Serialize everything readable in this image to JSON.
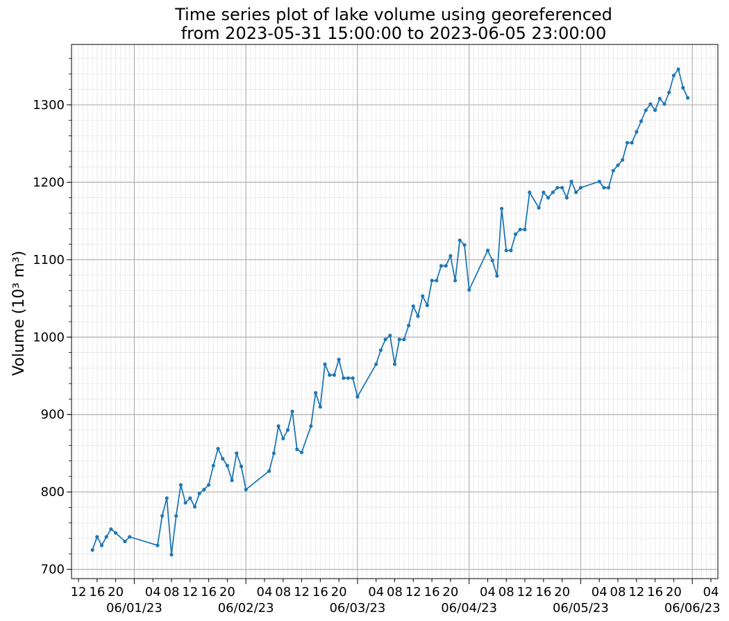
{
  "chart_data": {
    "type": "line",
    "title": [
      "Time series plot of lake volume using georeferenced",
      "from 2023-05-31 15:00:00 to 2023-06-05 23:00:00"
    ],
    "xlabel": "",
    "ylabel": "Volume (10³ m³)",
    "ylim": [
      688,
      1378
    ],
    "xlim": [
      "2023-05-31 10:30",
      "2023-06-06 05:30"
    ],
    "y_ticks": [
      700,
      800,
      900,
      1000,
      1100,
      1200,
      1300
    ],
    "y_tick_labels": [
      "700",
      "800",
      "900",
      "1000",
      "1100",
      "1200",
      "1300"
    ],
    "x_hour_ticks": [
      {
        "t": "2023-05-31 12:00",
        "label": "12"
      },
      {
        "t": "2023-05-31 16:00",
        "label": "16"
      },
      {
        "t": "2023-05-31 20:00",
        "label": "20"
      },
      {
        "t": "2023-06-01 04:00",
        "label": "04"
      },
      {
        "t": "2023-06-01 08:00",
        "label": "08"
      },
      {
        "t": "2023-06-01 12:00",
        "label": "12"
      },
      {
        "t": "2023-06-01 16:00",
        "label": "16"
      },
      {
        "t": "2023-06-01 20:00",
        "label": "20"
      },
      {
        "t": "2023-06-02 04:00",
        "label": "04"
      },
      {
        "t": "2023-06-02 08:00",
        "label": "08"
      },
      {
        "t": "2023-06-02 12:00",
        "label": "12"
      },
      {
        "t": "2023-06-02 16:00",
        "label": "16"
      },
      {
        "t": "2023-06-02 20:00",
        "label": "20"
      },
      {
        "t": "2023-06-03 04:00",
        "label": "04"
      },
      {
        "t": "2023-06-03 08:00",
        "label": "08"
      },
      {
        "t": "2023-06-03 12:00",
        "label": "12"
      },
      {
        "t": "2023-06-03 16:00",
        "label": "16"
      },
      {
        "t": "2023-06-03 20:00",
        "label": "20"
      },
      {
        "t": "2023-06-04 04:00",
        "label": "04"
      },
      {
        "t": "2023-06-04 08:00",
        "label": "08"
      },
      {
        "t": "2023-06-04 12:00",
        "label": "12"
      },
      {
        "t": "2023-06-04 16:00",
        "label": "16"
      },
      {
        "t": "2023-06-04 20:00",
        "label": "20"
      },
      {
        "t": "2023-06-05 04:00",
        "label": "04"
      },
      {
        "t": "2023-06-05 08:00",
        "label": "08"
      },
      {
        "t": "2023-06-05 12:00",
        "label": "12"
      },
      {
        "t": "2023-06-05 16:00",
        "label": "16"
      },
      {
        "t": "2023-06-05 20:00",
        "label": "20"
      },
      {
        "t": "2023-06-06 04:00",
        "label": "04"
      }
    ],
    "x_day_ticks": [
      {
        "t": "2023-06-01 00:00",
        "label": "06/01/23"
      },
      {
        "t": "2023-06-02 00:00",
        "label": "06/02/23"
      },
      {
        "t": "2023-06-03 00:00",
        "label": "06/03/23"
      },
      {
        "t": "2023-06-04 00:00",
        "label": "06/04/23"
      },
      {
        "t": "2023-06-05 00:00",
        "label": "06/05/23"
      },
      {
        "t": "2023-06-06 00:00",
        "label": "06/06/23"
      }
    ],
    "grid": {
      "major": true,
      "minor": true
    },
    "colors": {
      "line": "#1f77b4",
      "major_grid": "#b0b0b0",
      "minor_grid": "#e6e6e6"
    },
    "series": [
      {
        "x": [
          "2023-05-31 15:00",
          "2023-05-31 16:00",
          "2023-05-31 17:00",
          "2023-05-31 18:00",
          "2023-05-31 19:00",
          "2023-05-31 20:00",
          "2023-05-31 22:00",
          "2023-05-31 23:00",
          "2023-06-01 05:00",
          "2023-06-01 06:00",
          "2023-06-01 07:00",
          "2023-06-01 08:00",
          "2023-06-01 09:00",
          "2023-06-01 10:00",
          "2023-06-01 11:00",
          "2023-06-01 12:00",
          "2023-06-01 13:00",
          "2023-06-01 14:00",
          "2023-06-01 15:00",
          "2023-06-01 16:00",
          "2023-06-01 17:00",
          "2023-06-01 18:00",
          "2023-06-01 19:00",
          "2023-06-01 20:00",
          "2023-06-01 21:00",
          "2023-06-01 22:00",
          "2023-06-01 23:00",
          "2023-06-02 00:00",
          "2023-06-02 05:00",
          "2023-06-02 06:00",
          "2023-06-02 07:00",
          "2023-06-02 08:00",
          "2023-06-02 09:00",
          "2023-06-02 10:00",
          "2023-06-02 11:00",
          "2023-06-02 12:00",
          "2023-06-02 14:00",
          "2023-06-02 15:00",
          "2023-06-02 16:00",
          "2023-06-02 17:00",
          "2023-06-02 18:00",
          "2023-06-02 19:00",
          "2023-06-02 20:00",
          "2023-06-02 21:00",
          "2023-06-02 22:00",
          "2023-06-02 23:00",
          "2023-06-03 00:00",
          "2023-06-03 04:00",
          "2023-06-03 05:00",
          "2023-06-03 06:00",
          "2023-06-03 07:00",
          "2023-06-03 08:00",
          "2023-06-03 09:00",
          "2023-06-03 10:00",
          "2023-06-03 11:00",
          "2023-06-03 12:00",
          "2023-06-03 13:00",
          "2023-06-03 14:00",
          "2023-06-03 15:00",
          "2023-06-03 16:00",
          "2023-06-03 17:00",
          "2023-06-03 18:00",
          "2023-06-03 19:00",
          "2023-06-03 20:00",
          "2023-06-03 21:00",
          "2023-06-03 22:00",
          "2023-06-03 23:00",
          "2023-06-04 00:00",
          "2023-06-04 04:00",
          "2023-06-04 05:00",
          "2023-06-04 06:00",
          "2023-06-04 07:00",
          "2023-06-04 08:00",
          "2023-06-04 09:00",
          "2023-06-04 10:00",
          "2023-06-04 11:00",
          "2023-06-04 12:00",
          "2023-06-04 13:00",
          "2023-06-04 15:00",
          "2023-06-04 16:00",
          "2023-06-04 17:00",
          "2023-06-04 18:00",
          "2023-06-04 19:00",
          "2023-06-04 20:00",
          "2023-06-04 21:00",
          "2023-06-04 22:00",
          "2023-06-04 23:00",
          "2023-06-05 00:00",
          "2023-06-05 04:00",
          "2023-06-05 05:00",
          "2023-06-05 06:00",
          "2023-06-05 07:00",
          "2023-06-05 08:00",
          "2023-06-05 09:00",
          "2023-06-05 10:00",
          "2023-06-05 11:00",
          "2023-06-05 12:00",
          "2023-06-05 13:00",
          "2023-06-05 14:00",
          "2023-06-05 15:00",
          "2023-06-05 16:00",
          "2023-06-05 17:00",
          "2023-06-05 18:00",
          "2023-06-05 19:00",
          "2023-06-05 20:00",
          "2023-06-05 21:00",
          "2023-06-05 22:00",
          "2023-06-05 23:00"
        ],
        "y": [
          725,
          742,
          731,
          742,
          752,
          747,
          736,
          742,
          731,
          769,
          792,
          719,
          769,
          809,
          786,
          792,
          781,
          798,
          803,
          809,
          834,
          856,
          843,
          834,
          815,
          850,
          833,
          803,
          827,
          850,
          885,
          869,
          880,
          904,
          855,
          851,
          885,
          928,
          910,
          965,
          951,
          951,
          971,
          947,
          947,
          947,
          923,
          965,
          983,
          997,
          1002,
          965,
          997,
          997,
          1015,
          1040,
          1027,
          1053,
          1041,
          1073,
          1073,
          1092,
          1092,
          1105,
          1073,
          1125,
          1119,
          1061,
          1112,
          1099,
          1079,
          1166,
          1112,
          1112,
          1133,
          1139,
          1139,
          1187,
          1167,
          1187,
          1180,
          1187,
          1193,
          1193,
          1180,
          1201,
          1187,
          1193,
          1201,
          1193,
          1193,
          1215,
          1222,
          1229,
          1251,
          1251,
          1265,
          1279,
          1293,
          1301,
          1293,
          1308,
          1301,
          1316,
          1338,
          1346,
          1322,
          1309
        ]
      }
    ]
  }
}
